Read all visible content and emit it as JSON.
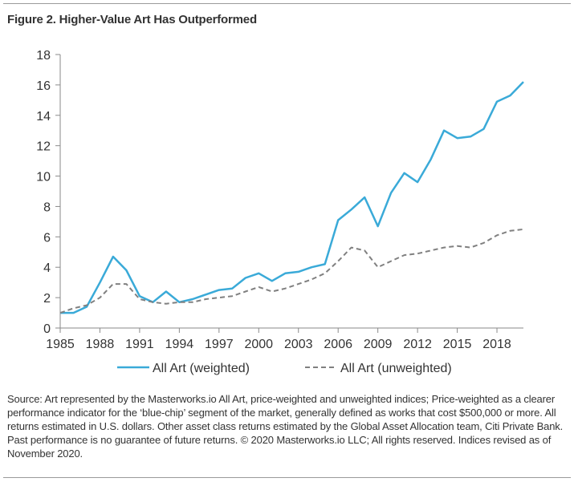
{
  "figure": {
    "title": "Figure 2. Higher-Value Art Has Outperformed",
    "source": "Source: Art represented by the Masterworks.io All Art, price-weighted and unweighted indices; Price-weighted as a clearer performance indicator for the ‘blue-chip’ segment of the market, generally defined as works that cost $500,000 or more. All returns estimated in U.S. dollars. Other asset class returns estimated by the Global Asset Allocation team, Citi Private Bank. Past performance is no guarantee of future returns. © 2020 Masterworks.io LLC; All rights reserved. Indices revised as of November 2020."
  },
  "chart_data": {
    "type": "line",
    "title": "Figure 2. Higher-Value Art Has Outperformed",
    "xlabel": "",
    "ylabel": "",
    "xlim": [
      1985,
      2020
    ],
    "ylim": [
      0,
      18
    ],
    "x_ticks": [
      "1985",
      "1988",
      "1991",
      "1994",
      "1997",
      "2000",
      "2003",
      "2006",
      "2009",
      "2012",
      "2015",
      "2018"
    ],
    "y_ticks": [
      "0",
      "2",
      "4",
      "6",
      "8",
      "10",
      "12",
      "14",
      "16",
      "18"
    ],
    "grid": false,
    "legend_position": "bottom",
    "x": [
      1985,
      1986,
      1987,
      1988,
      1989,
      1990,
      1991,
      1992,
      1993,
      1994,
      1995,
      1996,
      1997,
      1998,
      1999,
      2000,
      2001,
      2002,
      2003,
      2004,
      2005,
      2006,
      2007,
      2008,
      2009,
      2010,
      2011,
      2012,
      2013,
      2014,
      2015,
      2016,
      2017,
      2018,
      2019,
      2020
    ],
    "series": [
      {
        "name": "All Art (weighted)",
        "color": "#3aaad8",
        "style": "solid",
        "values": [
          1.0,
          1.0,
          1.4,
          3.0,
          4.7,
          3.8,
          2.1,
          1.7,
          2.4,
          1.7,
          1.9,
          2.2,
          2.5,
          2.6,
          3.3,
          3.6,
          3.1,
          3.6,
          3.7,
          4.0,
          4.2,
          7.1,
          7.8,
          8.6,
          6.7,
          8.9,
          10.2,
          9.6,
          11.1,
          13.0,
          12.5,
          12.6,
          13.1,
          14.9,
          15.3,
          16.2
        ]
      },
      {
        "name": "All Art (unweighted)",
        "color": "#808080",
        "style": "dashed",
        "values": [
          1.0,
          1.3,
          1.5,
          2.0,
          2.9,
          2.9,
          1.9,
          1.7,
          1.6,
          1.7,
          1.7,
          1.9,
          2.0,
          2.1,
          2.4,
          2.7,
          2.4,
          2.6,
          2.9,
          3.2,
          3.6,
          4.4,
          5.3,
          5.1,
          4.0,
          4.4,
          4.8,
          4.9,
          5.1,
          5.3,
          5.4,
          5.3,
          5.6,
          6.1,
          6.4,
          6.5
        ]
      }
    ]
  }
}
